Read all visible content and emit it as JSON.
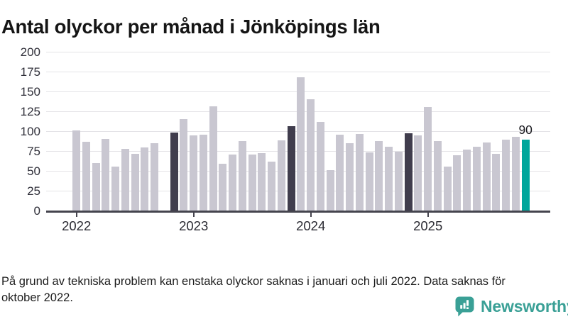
{
  "title": "Antal olyckor per månad i Jönköpings län",
  "footnote": "På grund av tekniska problem kan enstaka olyckor saknas i januari och juli 2022. Data saknas för oktober 2022.",
  "brand": {
    "name": "Newsworthy",
    "icon": "newsworthy-speech-bubble-chart-icon",
    "color": "#3aa096"
  },
  "colors": {
    "bar_default": "#c9c7d1",
    "bar_highlight_dark": "#403d4d",
    "bar_highlight_current": "#00a69b",
    "axis": "#45444e",
    "grid": "#e4e3e7",
    "tick_text": "#2b2b33"
  },
  "chart_data": {
    "type": "bar",
    "title": "Antal olyckor per månad i Jönköpings län",
    "xlabel": "",
    "ylabel": "",
    "ylim": [
      0,
      200
    ],
    "yticks": [
      0,
      25,
      50,
      75,
      100,
      125,
      150,
      175,
      200
    ],
    "grid": "horizontal",
    "legend": "none",
    "xticks": [
      {
        "label": "2022",
        "slot": 0
      },
      {
        "label": "2023",
        "slot": 12
      },
      {
        "label": "2024",
        "slot": 24
      },
      {
        "label": "2025",
        "slot": 36
      }
    ],
    "current_value_label": "90",
    "months": [
      {
        "month": "2022-01",
        "value": 101
      },
      {
        "month": "2022-02",
        "value": 87
      },
      {
        "month": "2022-03",
        "value": 60
      },
      {
        "month": "2022-04",
        "value": 91
      },
      {
        "month": "2022-05",
        "value": 56
      },
      {
        "month": "2022-06",
        "value": 78
      },
      {
        "month": "2022-07",
        "value": 72
      },
      {
        "month": "2022-08",
        "value": 80
      },
      {
        "month": "2022-09",
        "value": 85
      },
      {
        "month": "2022-10",
        "value": null,
        "note": "data saknas"
      },
      {
        "month": "2022-11",
        "value": 99,
        "highlight": "dark"
      },
      {
        "month": "2022-12",
        "value": 116
      },
      {
        "month": "2023-01",
        "value": 95
      },
      {
        "month": "2023-02",
        "value": 96
      },
      {
        "month": "2023-03",
        "value": 132
      },
      {
        "month": "2023-04",
        "value": 59
      },
      {
        "month": "2023-05",
        "value": 71
      },
      {
        "month": "2023-06",
        "value": 88
      },
      {
        "month": "2023-07",
        "value": 71
      },
      {
        "month": "2023-08",
        "value": 73
      },
      {
        "month": "2023-09",
        "value": 62
      },
      {
        "month": "2023-10",
        "value": 89
      },
      {
        "month": "2023-11",
        "value": 107,
        "highlight": "dark"
      },
      {
        "month": "2023-12",
        "value": 168
      },
      {
        "month": "2024-01",
        "value": 141
      },
      {
        "month": "2024-02",
        "value": 112
      },
      {
        "month": "2024-03",
        "value": 51
      },
      {
        "month": "2024-04",
        "value": 96
      },
      {
        "month": "2024-05",
        "value": 85
      },
      {
        "month": "2024-06",
        "value": 97
      },
      {
        "month": "2024-07",
        "value": 74
      },
      {
        "month": "2024-08",
        "value": 88
      },
      {
        "month": "2024-09",
        "value": 81
      },
      {
        "month": "2024-10",
        "value": 75
      },
      {
        "month": "2024-11",
        "value": 98,
        "highlight": "dark"
      },
      {
        "month": "2024-12",
        "value": 95
      },
      {
        "month": "2025-01",
        "value": 131
      },
      {
        "month": "2025-02",
        "value": 88
      },
      {
        "month": "2025-03",
        "value": 56
      },
      {
        "month": "2025-04",
        "value": 70
      },
      {
        "month": "2025-05",
        "value": 77
      },
      {
        "month": "2025-06",
        "value": 81
      },
      {
        "month": "2025-07",
        "value": 86
      },
      {
        "month": "2025-08",
        "value": 72
      },
      {
        "month": "2025-09",
        "value": 90
      },
      {
        "month": "2025-10",
        "value": 93
      },
      {
        "month": "2025-11",
        "value": 90,
        "highlight": "current"
      }
    ]
  }
}
